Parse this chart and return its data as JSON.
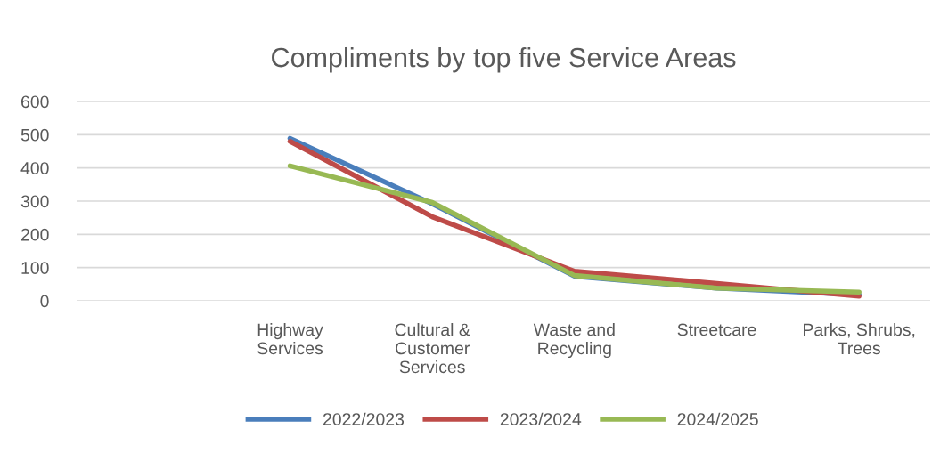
{
  "chart_data": {
    "type": "line",
    "title": "Compliments by top five Service Areas",
    "categories": [
      null,
      "Highway\nServices",
      "Cultural &\nCustomer\nServices",
      "Waste and\nRecycling",
      "Streetcare",
      "Parks, Shrubs,\nTrees"
    ],
    "series": [
      {
        "name": "2022/2023",
        "color": "#4a7ebb",
        "values": [
          null,
          489,
          292,
          74,
          38,
          18
        ]
      },
      {
        "name": "2023/2024",
        "color": "#be4b48",
        "values": [
          null,
          480,
          253,
          89,
          52,
          14
        ]
      },
      {
        "name": "2024/2025",
        "color": "#98b954",
        "values": [
          null,
          406,
          296,
          76,
          38,
          26
        ]
      }
    ],
    "ylim": [
      0,
      600
    ],
    "yticks": [
      0,
      100,
      200,
      300,
      400,
      500,
      600
    ],
    "grid": "y",
    "legend": "bottom",
    "marker": "none",
    "line_style": "solid"
  }
}
